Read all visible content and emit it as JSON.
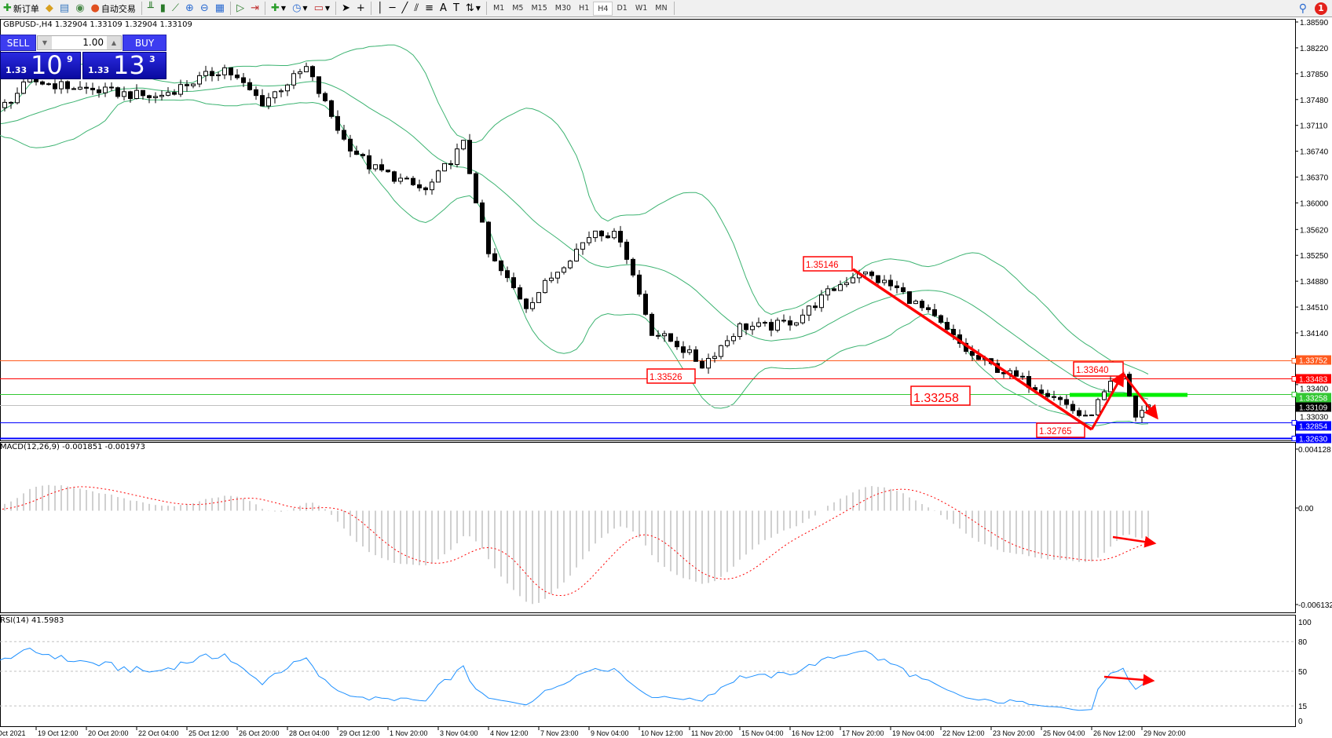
{
  "toolbar": {
    "new_order": "新订单",
    "auto_trading": "自动交易",
    "timeframes": [
      "M1",
      "M5",
      "M15",
      "M30",
      "H1",
      "H4",
      "D1",
      "W1",
      "MN"
    ],
    "active_timeframe": "H4",
    "notification_count": "1"
  },
  "chart": {
    "title": "GBPUSD-,H4  1.32904 1.33109 1.32904 1.33109",
    "price_ticks": [
      "1.38590",
      "1.38220",
      "1.37850",
      "1.37480",
      "1.37110",
      "1.36740",
      "1.36370",
      "1.36000",
      "1.35620",
      "1.35250",
      "1.34880",
      "1.34510",
      "1.34140",
      "1.33400",
      "1.33030"
    ],
    "levels": [
      {
        "price": "1.33752",
        "color": "#ff5a1e"
      },
      {
        "price": "1.33483",
        "color": "#ff0000"
      },
      {
        "price": "1.33258",
        "color": "#32c832"
      },
      {
        "price": "1.33109",
        "color": "#000000"
      },
      {
        "price": "1.32854",
        "color": "#0000ff"
      },
      {
        "price": "1.32630",
        "color": "#0000ff"
      }
    ],
    "annotations": [
      "1.35146",
      "1.33526",
      "1.33258",
      "1.32765",
      "1.33640"
    ],
    "bollinger_color": "#3cb371",
    "price_path": [
      [
        0,
        1.3732
      ],
      [
        5,
        1.3775
      ],
      [
        12,
        1.3765
      ],
      [
        25,
        1.3751
      ],
      [
        36,
        1.3793
      ],
      [
        42,
        1.3744
      ],
      [
        49,
        1.3793
      ],
      [
        55,
        1.369
      ],
      [
        59,
        1.3653
      ],
      [
        68,
        1.3617
      ],
      [
        74,
        1.3684
      ],
      [
        78,
        1.3526
      ],
      [
        84,
        1.3453
      ],
      [
        90,
        1.3514
      ],
      [
        95,
        1.3562
      ],
      [
        99,
        1.355
      ],
      [
        104,
        1.3416
      ],
      [
        108,
        1.3398
      ],
      [
        112,
        1.3368
      ],
      [
        118,
        1.3423
      ],
      [
        123,
        1.3423
      ],
      [
        127,
        1.3433
      ],
      [
        132,
        1.3471
      ],
      [
        137,
        1.3502
      ],
      [
        143,
        1.3477
      ],
      [
        149,
        1.3434
      ],
      [
        155,
        1.338
      ],
      [
        162,
        1.335
      ],
      [
        168,
        1.3325
      ],
      [
        173,
        1.329
      ],
      [
        177,
        1.3338
      ],
      [
        179,
        1.335
      ],
      [
        181,
        1.3295
      ],
      [
        183,
        1.33109
      ]
    ]
  },
  "trade_panel": {
    "sell_label": "SELL",
    "buy_label": "BUY",
    "lot": "1.00",
    "sell_prefix": "1.33",
    "sell_big": "10",
    "sell_sup": "9",
    "buy_prefix": "1.33",
    "buy_big": "13",
    "buy_sup": "3"
  },
  "macd": {
    "title": "MACD(12,26,9) -0.001851 -0.001973",
    "ticks": [
      "0.004128",
      "0.00",
      "-0.006132"
    ],
    "max": 0.004128,
    "min": -0.006132
  },
  "rsi": {
    "title": "RSI(14) 41.5983",
    "ticks": [
      "100",
      "80",
      "50",
      "15",
      "0"
    ],
    "levels": [
      80,
      50,
      15
    ]
  },
  "time_axis": [
    "Oct 2021",
    "19 Oct 12:00",
    "20 Oct 20:00",
    "22 Oct 04:00",
    "25 Oct 12:00",
    "26 Oct 20:00",
    "28 Oct 04:00",
    "29 Oct 12:00",
    "1 Nov 20:00",
    "3 Nov 04:00",
    "4 Nov 12:00",
    "7 Nov 23:00",
    "9 Nov 04:00",
    "10 Nov 12:00",
    "11 Nov 20:00",
    "15 Nov 04:00",
    "16 Nov 12:00",
    "17 Nov 20:00",
    "19 Nov 04:00",
    "22 Nov 12:00",
    "23 Nov 20:00",
    "25 Nov 04:00",
    "26 Nov 12:00",
    "29 Nov 20:00"
  ]
}
